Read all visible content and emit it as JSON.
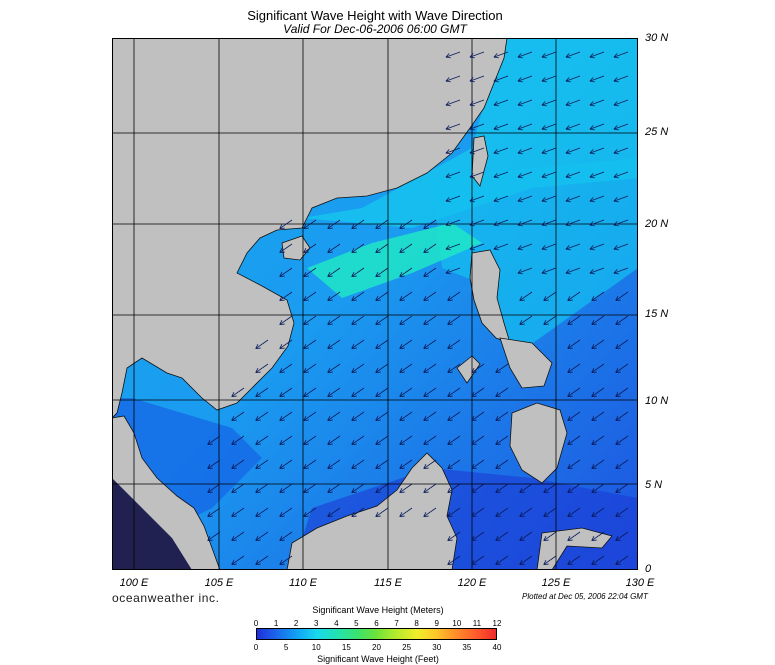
{
  "header": {
    "title": "Significant Wave Height with Wave Direction",
    "subtitle": "Valid For Dec-06-2006 06:00 GMT"
  },
  "map": {
    "lat_labels": [
      "30 N",
      "25 N",
      "20 N",
      "15 N",
      "10 N",
      "5 N",
      "0"
    ],
    "lon_labels": [
      "100 E",
      "105 E",
      "110 E",
      "115 E",
      "120 E",
      "125 E",
      "130 E"
    ],
    "colors": {
      "land": "#c0c0c0",
      "sea_mid": "#1370ea",
      "sea_light": "#12c3f0",
      "sea_peak": "#1ee8d4",
      "sea_deep": "#1c3ad6"
    }
  },
  "footer": {
    "brand": "oceanweather inc.",
    "plotted": "Plotted at Dec 05, 2006 22:04 GMT"
  },
  "colorbar": {
    "title_meters": "Significant Wave Height (Meters)",
    "title_feet": "Significant Wave Height (Feet)",
    "meters_ticks": [
      "0",
      "1",
      "2",
      "3",
      "4",
      "5",
      "6",
      "7",
      "8",
      "9",
      "10",
      "11",
      "12"
    ],
    "feet_ticks": [
      "0",
      "5",
      "10",
      "15",
      "20",
      "25",
      "30",
      "35",
      "40"
    ],
    "range_meters": [
      0,
      12
    ],
    "range_feet": [
      0,
      40
    ]
  }
}
